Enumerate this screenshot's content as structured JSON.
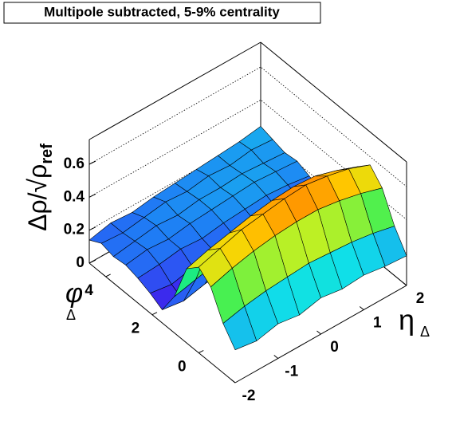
{
  "chart_data": {
    "type": "surface",
    "title": "Multipole subtracted, 5-9% centrality",
    "xlabel": "η",
    "xlabel_sub": "Δ",
    "ylabel": "φ",
    "ylabel_sub": "Δ",
    "zlabel": "Δρ/√ρ",
    "zlabel_sub": "ref",
    "x": [
      -2,
      -1.5,
      -1,
      -0.5,
      0,
      0.5,
      1,
      1.5,
      2
    ],
    "y": [
      -1.57,
      -1.05,
      -0.52,
      0,
      0.52,
      1.05,
      1.57,
      2.09,
      2.62,
      3.14,
      3.67,
      4.19,
      4.71
    ],
    "values": [
      [
        0.2,
        0.18,
        0.21,
        0.19,
        0.22,
        0.2,
        0.21,
        0.19,
        0.18
      ],
      [
        0.3,
        0.33,
        0.35,
        0.36,
        0.37,
        0.36,
        0.35,
        0.33,
        0.3
      ],
      [
        0.46,
        0.5,
        0.53,
        0.55,
        0.56,
        0.56,
        0.54,
        0.51,
        0.47
      ],
      [
        0.52,
        0.56,
        0.6,
        0.62,
        0.64,
        0.65,
        0.63,
        0.6,
        0.55
      ],
      [
        0.45,
        0.49,
        0.52,
        0.55,
        0.57,
        0.58,
        0.57,
        0.53,
        0.48
      ],
      [
        0.22,
        0.25,
        0.28,
        0.3,
        0.31,
        0.3,
        0.29,
        0.27,
        0.24
      ],
      [
        0.08,
        0.06,
        0.09,
        0.1,
        0.12,
        0.13,
        0.14,
        0.13,
        0.12
      ],
      [
        0.12,
        0.1,
        0.13,
        0.15,
        0.16,
        0.17,
        0.18,
        0.17,
        0.15
      ],
      [
        0.15,
        0.16,
        0.18,
        0.17,
        0.19,
        0.2,
        0.21,
        0.2,
        0.18
      ],
      [
        0.17,
        0.19,
        0.18,
        0.2,
        0.21,
        0.22,
        0.23,
        0.22,
        0.21
      ],
      [
        0.16,
        0.18,
        0.2,
        0.19,
        0.21,
        0.21,
        0.22,
        0.21,
        0.2
      ],
      [
        0.18,
        0.17,
        0.19,
        0.21,
        0.2,
        0.22,
        0.21,
        0.23,
        0.22
      ],
      [
        0.14,
        0.17,
        0.16,
        0.18,
        0.19,
        0.2,
        0.21,
        0.22,
        0.24
      ]
    ],
    "xlim": [
      -2,
      2
    ],
    "ylim": [
      -1.57,
      4.71
    ],
    "zlim": [
      0,
      0.75
    ],
    "xticks": [
      -2,
      -1,
      0,
      1,
      2
    ],
    "yticks": [
      0,
      2,
      4
    ],
    "zticks": [
      0,
      0.2,
      0.4,
      0.6
    ],
    "palette": [
      "#4b00a0",
      "#3a2cf0",
      "#1f7cf5",
      "#10e0e8",
      "#20f060",
      "#c8f020",
      "#ffd000",
      "#ff5000",
      "#e00000"
    ],
    "grid": true
  }
}
